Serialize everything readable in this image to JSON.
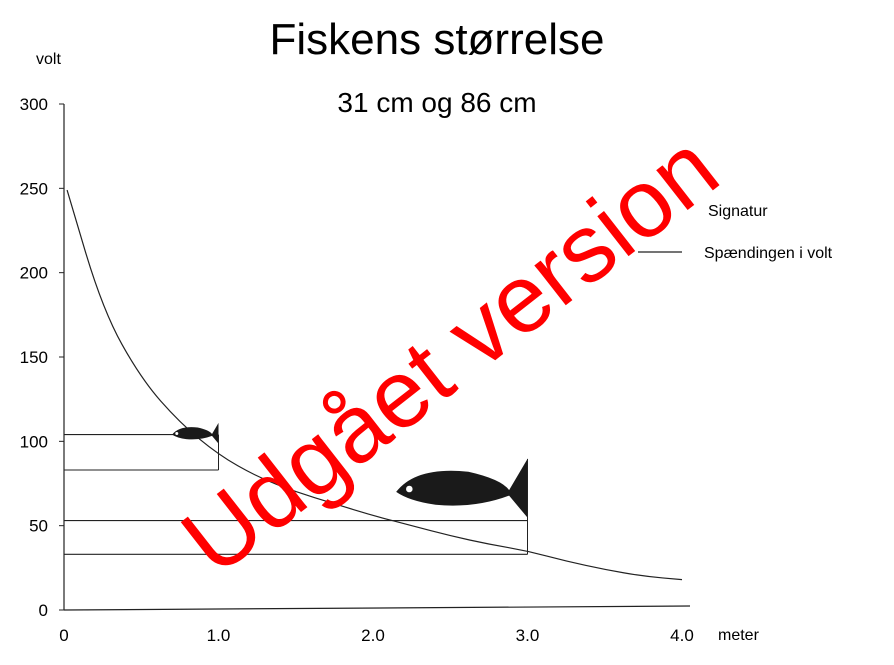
{
  "chart_data": {
    "type": "line",
    "title": "Fiskens størrelse",
    "subtitle": "31 cm og 86 cm",
    "ylabel": "volt",
    "xlabel": "meter",
    "xlim": [
      0,
      4.0
    ],
    "ylim": [
      0,
      300
    ],
    "y_ticks": [
      "0",
      "50",
      "100",
      "150",
      "200",
      "250",
      "300"
    ],
    "x_ticks": [
      "0",
      "1.0",
      "2.0",
      "3.0",
      "4.0"
    ],
    "grid": false,
    "legend": {
      "position": "right",
      "title": "Signatur",
      "entries": [
        "Spændingen i volt"
      ]
    },
    "series": [
      {
        "name": "Spændingen i volt",
        "x": [
          0.02,
          0.25,
          0.5,
          0.75,
          1.0,
          1.25,
          1.5,
          1.75,
          2.0,
          2.25,
          2.5,
          2.75,
          3.0,
          3.25,
          3.5,
          3.75,
          4.0
        ],
        "y": [
          249,
          178,
          137,
          111,
          92,
          79,
          70,
          63,
          56,
          50,
          44,
          39,
          35,
          29,
          24,
          20,
          18
        ]
      }
    ],
    "reference_levels": [
      {
        "y": 104,
        "x_end": 1.0
      },
      {
        "y": 83,
        "x_end": 1.0
      },
      {
        "y": 53,
        "x_end": 3.0
      },
      {
        "y": 33,
        "x_end": 3.0
      }
    ],
    "fish_markers": [
      {
        "label": "31 cm",
        "x_start": 0.7,
        "x_end": 1.0,
        "y": 104
      },
      {
        "label": "86 cm",
        "x_start": 2.15,
        "x_end": 3.0,
        "y": 70
      }
    ]
  },
  "watermark": {
    "text": "Udgået version",
    "color": "#ff0000"
  }
}
